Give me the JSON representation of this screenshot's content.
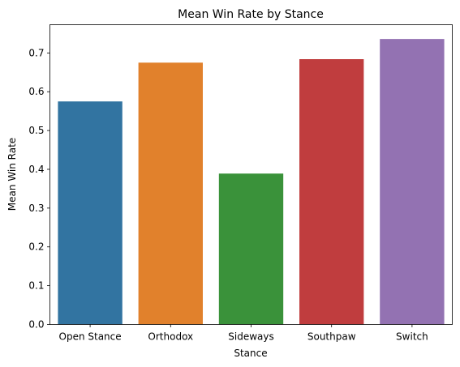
{
  "chart_data": {
    "type": "bar",
    "title": "Mean Win Rate by Stance",
    "xlabel": "Stance",
    "ylabel": "Mean Win Rate",
    "categories": [
      "Open Stance",
      "Orthodox",
      "Sideways",
      "Southpaw",
      "Switch"
    ],
    "values": [
      0.575,
      0.675,
      0.389,
      0.684,
      0.736
    ],
    "colors": [
      "#3274a1",
      "#e1812c",
      "#3a923a",
      "#c03d3e",
      "#9372b2"
    ],
    "y_ticks": [
      0.0,
      0.1,
      0.2,
      0.3,
      0.4,
      0.5,
      0.6,
      0.7
    ],
    "y_tick_labels": [
      "0.0",
      "0.1",
      "0.2",
      "0.3",
      "0.4",
      "0.5",
      "0.6",
      "0.7"
    ],
    "ylim": [
      0,
      0.7728
    ],
    "grid": false,
    "legend": "none"
  }
}
